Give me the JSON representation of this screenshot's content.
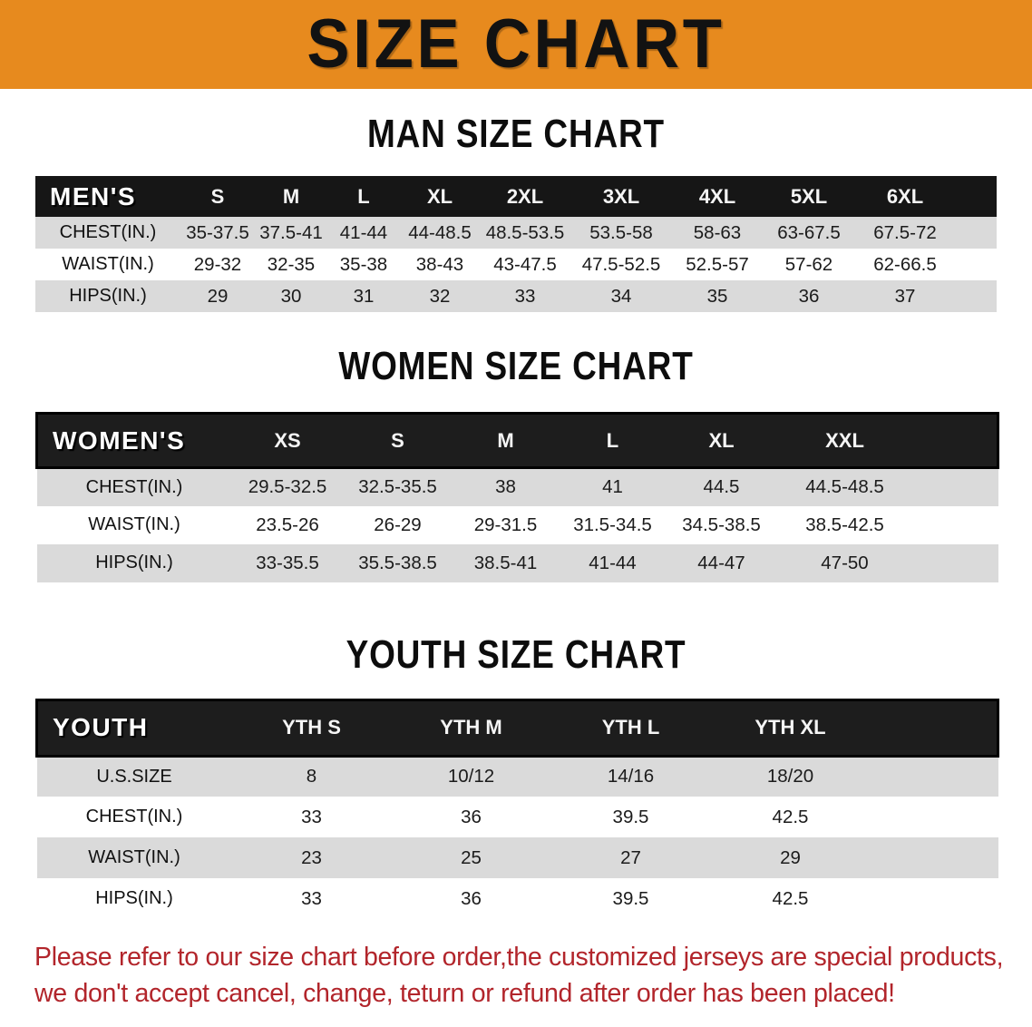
{
  "banner": {
    "title": "SIZE CHART"
  },
  "sections": [
    {
      "heading": "MAN SIZE CHART",
      "table": {
        "label": "MEN'S",
        "columns": [
          "S",
          "M",
          "L",
          "XL",
          "2XL",
          "3XL",
          "4XL",
          "5XL",
          "6XL"
        ],
        "rows": [
          {
            "label": "CHEST(IN.)",
            "values": [
              "35-37.5",
              "37.5-41",
              "41-44",
              "44-48.5",
              "48.5-53.5",
              "53.5-58",
              "58-63",
              "63-67.5",
              "67.5-72"
            ]
          },
          {
            "label": "WAIST(IN.)",
            "values": [
              "29-32",
              "32-35",
              "35-38",
              "38-43",
              "43-47.5",
              "47.5-52.5",
              "52.5-57",
              "57-62",
              "62-66.5"
            ]
          },
          {
            "label": "HIPS(IN.)",
            "values": [
              "29",
              "30",
              "31",
              "32",
              "33",
              "34",
              "35",
              "36",
              "37"
            ]
          }
        ]
      }
    },
    {
      "heading": "WOMEN SIZE CHART",
      "table": {
        "label": "WOMEN'S",
        "columns": [
          "XS",
          "S",
          "M",
          "L",
          "XL",
          "XXL"
        ],
        "rows": [
          {
            "label": "CHEST(IN.)",
            "values": [
              "29.5-32.5",
              "32.5-35.5",
              "38",
              "41",
              "44.5",
              "44.5-48.5"
            ]
          },
          {
            "label": "WAIST(IN.)",
            "values": [
              "23.5-26",
              "26-29",
              "29-31.5",
              "31.5-34.5",
              "34.5-38.5",
              "38.5-42.5"
            ]
          },
          {
            "label": "HIPS(IN.)",
            "values": [
              "33-35.5",
              "35.5-38.5",
              "38.5-41",
              "41-44",
              "44-47",
              "47-50"
            ]
          }
        ]
      }
    },
    {
      "heading": "YOUTH SIZE CHART",
      "table": {
        "label": "YOUTH",
        "columns": [
          "YTH S",
          "YTH M",
          "YTH L",
          "YTH XL"
        ],
        "rows": [
          {
            "label": "U.S.SIZE",
            "values": [
              "8",
              "10/12",
              "14/16",
              "18/20"
            ]
          },
          {
            "label": "CHEST(IN.)",
            "values": [
              "33",
              "36",
              "39.5",
              "42.5"
            ]
          },
          {
            "label": "WAIST(IN.)",
            "values": [
              "23",
              "25",
              "27",
              "29"
            ]
          },
          {
            "label": "HIPS(IN.)",
            "values": [
              "33",
              "36",
              "39.5",
              "42.5"
            ]
          }
        ]
      }
    }
  ],
  "disclaimer": {
    "line1": "Please refer to our size chart before order,the customized jerseys are special products,",
    "line2": "we don't accept cancel, change, teturn or refund after order has been placed!"
  },
  "colors": {
    "banner_bg": "#E78A1E",
    "table_header_bg": "#161616",
    "row_gray": "#DADADA",
    "disclaimer_red": "#B2252B"
  }
}
